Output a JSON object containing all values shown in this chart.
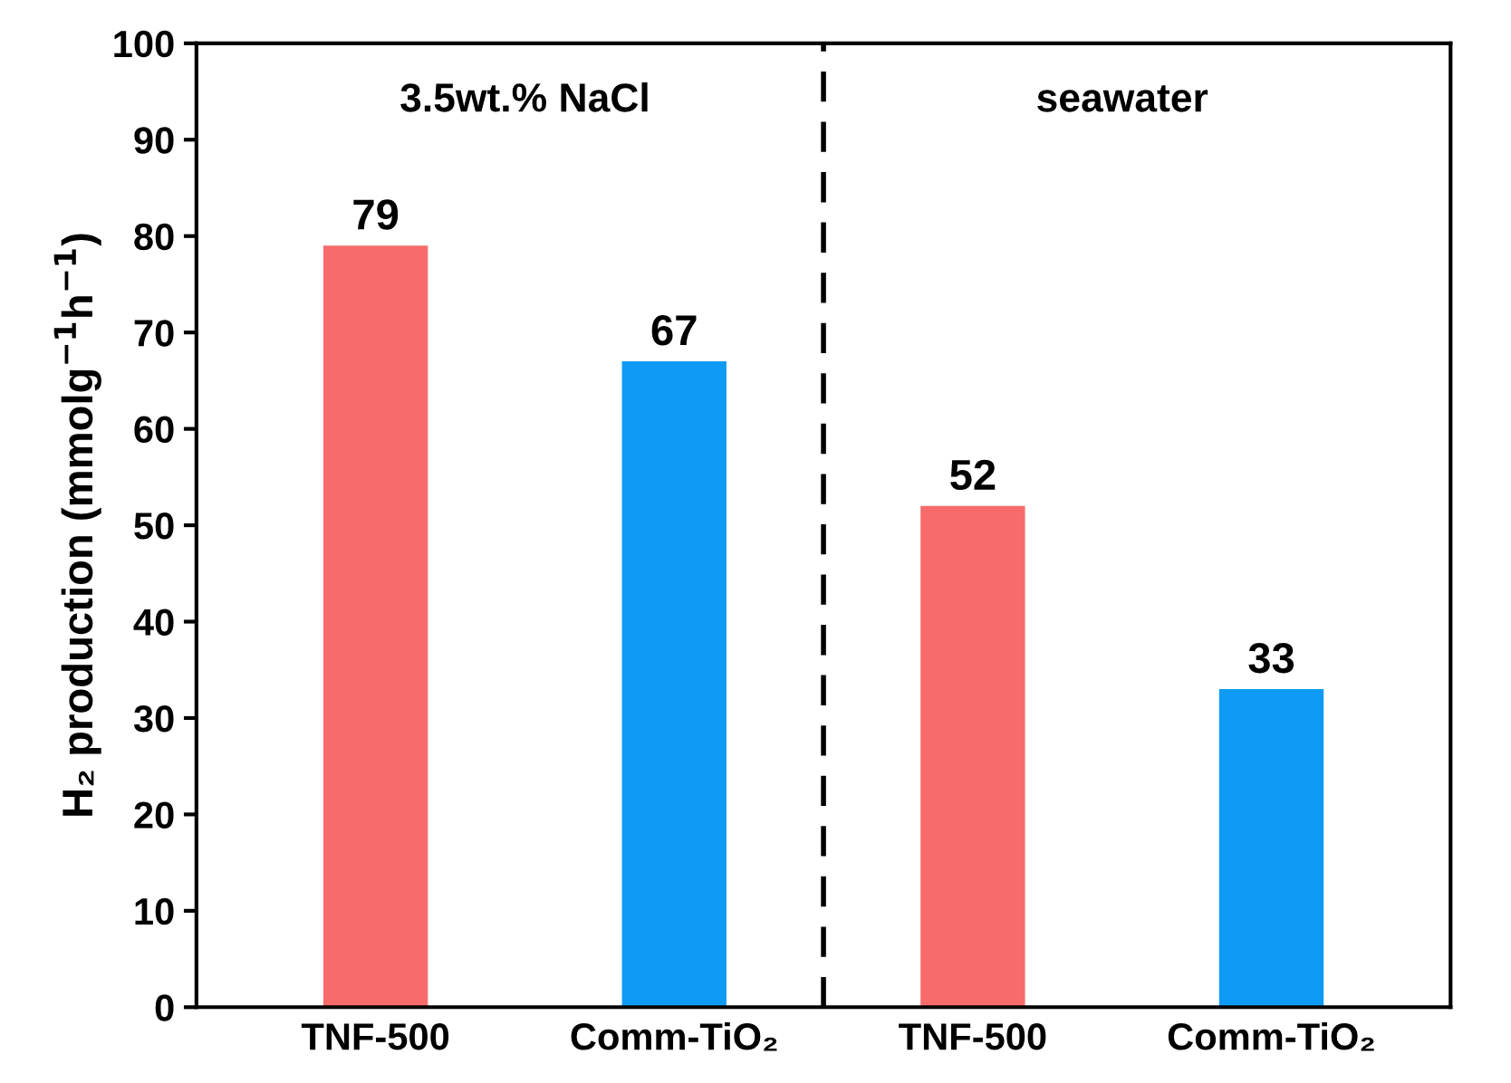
{
  "chart_data": {
    "type": "bar",
    "ylabel": "H₂ production (mmolg$^{−1}$h$^{−1}$)",
    "categories": [
      "TNF-500",
      "Comm-TiO₂",
      "TNF-500",
      "Comm-TiO₂"
    ],
    "values": [
      79,
      67,
      52,
      33
    ],
    "colors": [
      "#f76b6b",
      "#0f9bf5",
      "#f76b6b",
      "#0f9bf5"
    ],
    "ylim": [
      0,
      100
    ],
    "yticks": [
      0,
      10,
      20,
      30,
      40,
      50,
      60,
      70,
      80,
      90,
      100
    ],
    "data_labels": true,
    "grid": false,
    "annotations": [
      "3.5wt.% NaCl",
      "seawater"
    ]
  }
}
